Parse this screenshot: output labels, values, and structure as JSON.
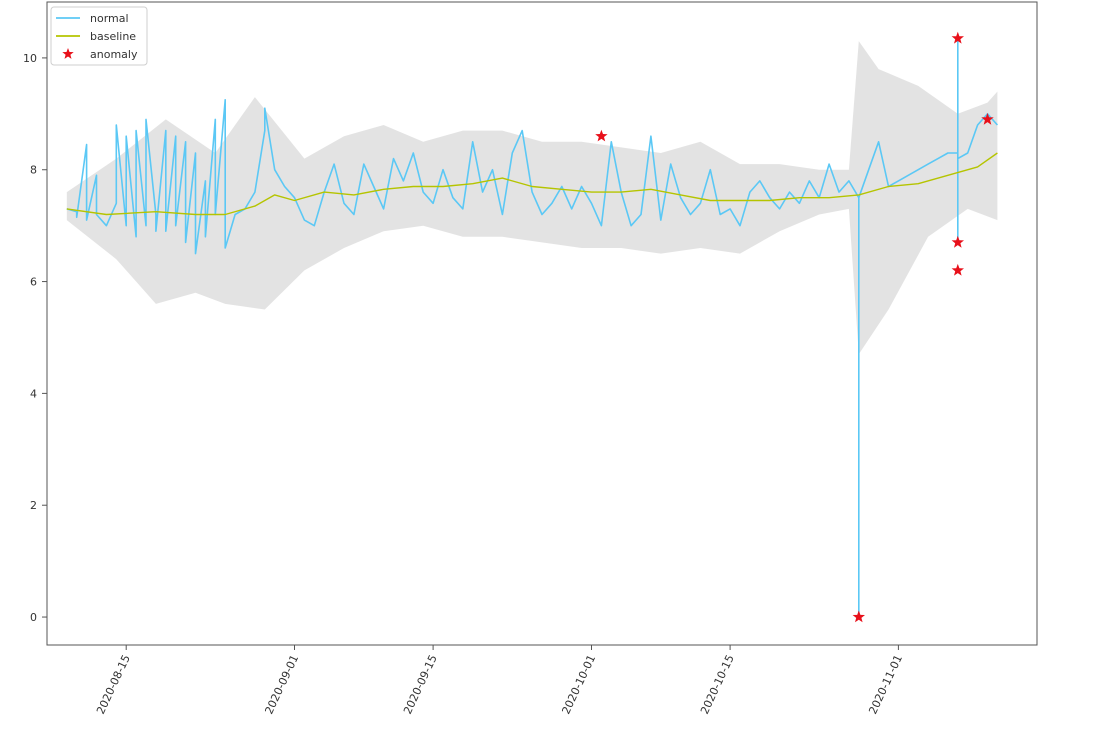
{
  "chart_data": {
    "type": "line",
    "x_type": "date",
    "xlim": [
      "2020-08-07",
      "2020-11-15"
    ],
    "ylim": [
      -0.5,
      11.0
    ],
    "grid": false,
    "legend_position": "top-left",
    "title": "",
    "xlabel": "",
    "ylabel": "",
    "x_ticks": [
      "2020-08-15",
      "2020-09-01",
      "2020-09-15",
      "2020-10-01",
      "2020-10-15",
      "2020-11-01"
    ],
    "y_ticks": [
      0,
      2,
      4,
      6,
      8,
      10
    ],
    "colors": {
      "normal": "#5bc8f5",
      "baseline": "#b5c400",
      "anomaly": "#e8101a",
      "band": "#d9d9d9",
      "axes": "#555555"
    },
    "series": [
      {
        "name": "normal",
        "kind": "line",
        "points": [
          [
            "2020-08-09",
            7.3
          ],
          [
            "2020-08-10",
            7.25
          ],
          [
            "2020-08-10",
            7.15
          ],
          [
            "2020-08-11",
            8.45
          ],
          [
            "2020-08-11",
            7.1
          ],
          [
            "2020-08-12",
            7.9
          ],
          [
            "2020-08-12",
            7.2
          ],
          [
            "2020-08-13",
            7.0
          ],
          [
            "2020-08-14",
            7.4
          ],
          [
            "2020-08-14",
            8.8
          ],
          [
            "2020-08-15",
            7.0
          ],
          [
            "2020-08-15",
            8.6
          ],
          [
            "2020-08-16",
            6.8
          ],
          [
            "2020-08-16",
            8.7
          ],
          [
            "2020-08-17",
            7.0
          ],
          [
            "2020-08-17",
            8.9
          ],
          [
            "2020-08-18",
            7.2
          ],
          [
            "2020-08-18",
            6.9
          ],
          [
            "2020-08-19",
            8.7
          ],
          [
            "2020-08-19",
            6.9
          ],
          [
            "2020-08-20",
            8.6
          ],
          [
            "2020-08-20",
            7.0
          ],
          [
            "2020-08-21",
            8.5
          ],
          [
            "2020-08-21",
            6.7
          ],
          [
            "2020-08-22",
            8.3
          ],
          [
            "2020-08-22",
            6.5
          ],
          [
            "2020-08-23",
            7.8
          ],
          [
            "2020-08-23",
            6.8
          ],
          [
            "2020-08-24",
            8.9
          ],
          [
            "2020-08-24",
            7.2
          ],
          [
            "2020-08-25",
            9.25
          ],
          [
            "2020-08-25",
            6.6
          ],
          [
            "2020-08-26",
            7.2
          ],
          [
            "2020-08-27",
            7.3
          ],
          [
            "2020-08-28",
            7.6
          ],
          [
            "2020-08-29",
            8.7
          ],
          [
            "2020-08-29",
            9.1
          ],
          [
            "2020-08-30",
            8.0
          ],
          [
            "2020-08-31",
            7.7
          ],
          [
            "2020-09-01",
            7.5
          ],
          [
            "2020-09-02",
            7.1
          ],
          [
            "2020-09-03",
            7.0
          ],
          [
            "2020-09-04",
            7.6
          ],
          [
            "2020-09-05",
            8.1
          ],
          [
            "2020-09-06",
            7.4
          ],
          [
            "2020-09-07",
            7.2
          ],
          [
            "2020-09-08",
            8.1
          ],
          [
            "2020-09-09",
            7.7
          ],
          [
            "2020-09-10",
            7.3
          ],
          [
            "2020-09-11",
            8.2
          ],
          [
            "2020-09-12",
            7.8
          ],
          [
            "2020-09-13",
            8.3
          ],
          [
            "2020-09-14",
            7.6
          ],
          [
            "2020-09-15",
            7.4
          ],
          [
            "2020-09-16",
            8.0
          ],
          [
            "2020-09-17",
            7.5
          ],
          [
            "2020-09-18",
            7.3
          ],
          [
            "2020-09-19",
            8.5
          ],
          [
            "2020-09-20",
            7.6
          ],
          [
            "2020-09-21",
            8.0
          ],
          [
            "2020-09-22",
            7.2
          ],
          [
            "2020-09-23",
            8.3
          ],
          [
            "2020-09-24",
            8.7
          ],
          [
            "2020-09-25",
            7.6
          ],
          [
            "2020-09-26",
            7.2
          ],
          [
            "2020-09-27",
            7.4
          ],
          [
            "2020-09-28",
            7.7
          ],
          [
            "2020-09-29",
            7.3
          ],
          [
            "2020-09-30",
            7.7
          ],
          [
            "2020-10-01",
            7.4
          ],
          [
            "2020-10-02",
            7.0
          ],
          [
            "2020-10-03",
            8.5
          ],
          [
            "2020-10-04",
            7.6
          ],
          [
            "2020-10-05",
            7.0
          ],
          [
            "2020-10-06",
            7.2
          ],
          [
            "2020-10-07",
            8.6
          ],
          [
            "2020-10-08",
            7.1
          ],
          [
            "2020-10-09",
            8.1
          ],
          [
            "2020-10-10",
            7.5
          ],
          [
            "2020-10-11",
            7.2
          ],
          [
            "2020-10-12",
            7.4
          ],
          [
            "2020-10-13",
            8.0
          ],
          [
            "2020-10-14",
            7.2
          ],
          [
            "2020-10-15",
            7.3
          ],
          [
            "2020-10-16",
            7.0
          ],
          [
            "2020-10-17",
            7.6
          ],
          [
            "2020-10-18",
            7.8
          ],
          [
            "2020-10-19",
            7.5
          ],
          [
            "2020-10-20",
            7.3
          ],
          [
            "2020-10-21",
            7.6
          ],
          [
            "2020-10-22",
            7.4
          ],
          [
            "2020-10-23",
            7.8
          ],
          [
            "2020-10-24",
            7.5
          ],
          [
            "2020-10-25",
            8.1
          ],
          [
            "2020-10-26",
            7.6
          ],
          [
            "2020-10-27",
            7.8
          ],
          [
            "2020-10-28",
            7.5
          ],
          [
            "2020-10-28",
            0.0
          ],
          [
            "2020-10-28",
            7.5
          ],
          [
            "2020-10-29",
            8.0
          ],
          [
            "2020-10-30",
            8.5
          ],
          [
            "2020-10-31",
            7.7
          ],
          [
            "2020-11-01",
            7.8
          ],
          [
            "2020-11-02",
            7.9
          ],
          [
            "2020-11-03",
            8.0
          ],
          [
            "2020-11-04",
            8.1
          ],
          [
            "2020-11-05",
            8.2
          ],
          [
            "2020-11-06",
            8.3
          ],
          [
            "2020-11-07",
            8.3
          ],
          [
            "2020-11-07",
            10.3
          ],
          [
            "2020-11-07",
            6.7
          ],
          [
            "2020-11-07",
            8.2
          ],
          [
            "2020-11-08",
            8.3
          ],
          [
            "2020-11-09",
            8.8
          ],
          [
            "2020-11-10",
            9.0
          ],
          [
            "2020-11-11",
            8.8
          ]
        ]
      },
      {
        "name": "baseline",
        "kind": "line",
        "points": [
          [
            "2020-08-09",
            7.3
          ],
          [
            "2020-08-13",
            7.2
          ],
          [
            "2020-08-18",
            7.25
          ],
          [
            "2020-08-22",
            7.2
          ],
          [
            "2020-08-25",
            7.2
          ],
          [
            "2020-08-28",
            7.35
          ],
          [
            "2020-08-30",
            7.55
          ],
          [
            "2020-09-01",
            7.45
          ],
          [
            "2020-09-04",
            7.6
          ],
          [
            "2020-09-07",
            7.55
          ],
          [
            "2020-09-10",
            7.65
          ],
          [
            "2020-09-13",
            7.7
          ],
          [
            "2020-09-16",
            7.7
          ],
          [
            "2020-09-19",
            7.75
          ],
          [
            "2020-09-22",
            7.85
          ],
          [
            "2020-09-25",
            7.7
          ],
          [
            "2020-09-28",
            7.65
          ],
          [
            "2020-10-01",
            7.6
          ],
          [
            "2020-10-04",
            7.6
          ],
          [
            "2020-10-07",
            7.65
          ],
          [
            "2020-10-10",
            7.55
          ],
          [
            "2020-10-13",
            7.45
          ],
          [
            "2020-10-16",
            7.45
          ],
          [
            "2020-10-19",
            7.45
          ],
          [
            "2020-10-22",
            7.5
          ],
          [
            "2020-10-25",
            7.5
          ],
          [
            "2020-10-28",
            7.55
          ],
          [
            "2020-10-31",
            7.7
          ],
          [
            "2020-11-03",
            7.75
          ],
          [
            "2020-11-06",
            7.9
          ],
          [
            "2020-11-09",
            8.05
          ],
          [
            "2020-11-11",
            8.3
          ]
        ]
      },
      {
        "name": "anomaly",
        "kind": "scatter",
        "marker": "star",
        "points": [
          [
            "2020-10-02",
            8.6
          ],
          [
            "2020-10-28",
            0.0
          ],
          [
            "2020-11-07",
            10.35
          ],
          [
            "2020-11-07",
            6.7
          ],
          [
            "2020-11-07",
            6.2
          ],
          [
            "2020-11-10",
            8.9
          ]
        ]
      }
    ],
    "band": {
      "upper": [
        [
          "2020-08-09",
          7.6
        ],
        [
          "2020-08-14",
          8.2
        ],
        [
          "2020-08-19",
          8.9
        ],
        [
          "2020-08-24",
          8.3
        ],
        [
          "2020-08-28",
          9.3
        ],
        [
          "2020-09-02",
          8.2
        ],
        [
          "2020-09-06",
          8.6
        ],
        [
          "2020-09-10",
          8.8
        ],
        [
          "2020-09-14",
          8.5
        ],
        [
          "2020-09-18",
          8.7
        ],
        [
          "2020-09-22",
          8.7
        ],
        [
          "2020-09-26",
          8.5
        ],
        [
          "2020-09-30",
          8.5
        ],
        [
          "2020-10-04",
          8.4
        ],
        [
          "2020-10-08",
          8.3
        ],
        [
          "2020-10-12",
          8.5
        ],
        [
          "2020-10-16",
          8.1
        ],
        [
          "2020-10-20",
          8.1
        ],
        [
          "2020-10-24",
          8.0
        ],
        [
          "2020-10-27",
          8.0
        ],
        [
          "2020-10-28",
          10.3
        ],
        [
          "2020-10-30",
          9.8
        ],
        [
          "2020-11-03",
          9.5
        ],
        [
          "2020-11-07",
          9.0
        ],
        [
          "2020-11-10",
          9.2
        ],
        [
          "2020-11-11",
          9.4
        ]
      ],
      "lower": [
        [
          "2020-08-09",
          7.1
        ],
        [
          "2020-08-14",
          6.4
        ],
        [
          "2020-08-18",
          5.6
        ],
        [
          "2020-08-22",
          5.8
        ],
        [
          "2020-08-25",
          5.6
        ],
        [
          "2020-08-29",
          5.5
        ],
        [
          "2020-09-02",
          6.2
        ],
        [
          "2020-09-06",
          6.6
        ],
        [
          "2020-09-10",
          6.9
        ],
        [
          "2020-09-14",
          7.0
        ],
        [
          "2020-09-18",
          6.8
        ],
        [
          "2020-09-22",
          6.8
        ],
        [
          "2020-09-26",
          6.7
        ],
        [
          "2020-09-30",
          6.6
        ],
        [
          "2020-10-04",
          6.6
        ],
        [
          "2020-10-08",
          6.5
        ],
        [
          "2020-10-12",
          6.6
        ],
        [
          "2020-10-16",
          6.5
        ],
        [
          "2020-10-20",
          6.9
        ],
        [
          "2020-10-24",
          7.2
        ],
        [
          "2020-10-27",
          7.3
        ],
        [
          "2020-10-28",
          4.7
        ],
        [
          "2020-10-31",
          5.5
        ],
        [
          "2020-11-04",
          6.8
        ],
        [
          "2020-11-08",
          7.3
        ],
        [
          "2020-11-11",
          7.1
        ]
      ]
    }
  }
}
